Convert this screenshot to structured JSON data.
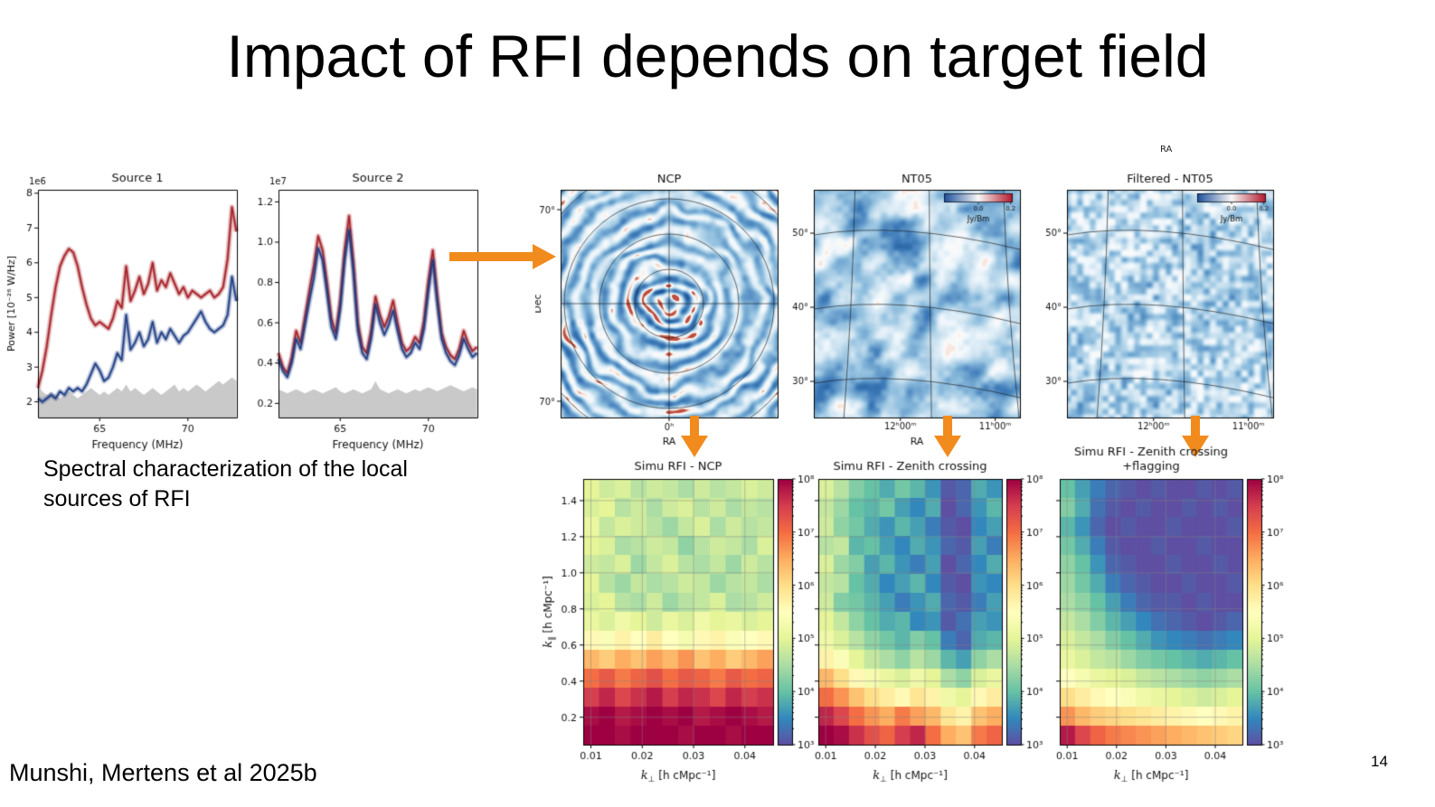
{
  "slide": {
    "title": "Impact of RFI depends on target field",
    "caption": "Spectral characterization of the local sources of RFI",
    "credit": "Munshi, Mertens et al 2025b",
    "page_number": "14",
    "arrow_color": "#F28B1D",
    "background": "#ffffff"
  },
  "spectra": {
    "xlabel": "Frequency (MHz)",
    "ylabel": "Power [10⁻²⁶ W/Hz]",
    "colors": {
      "red": "#A51C23",
      "blue": "#1C3B82",
      "floor": "#C9C9C9"
    },
    "x": [
      61.5,
      61.75,
      62,
      62.25,
      62.5,
      62.75,
      63,
      63.25,
      63.5,
      63.75,
      64,
      64.25,
      64.5,
      64.75,
      65,
      65.25,
      65.5,
      65.75,
      66,
      66.25,
      66.5,
      66.75,
      67,
      67.25,
      67.5,
      67.75,
      68,
      68.25,
      68.5,
      68.75,
      69,
      69.25,
      69.5,
      69.75,
      70,
      70.25,
      70.5,
      70.75,
      71,
      71.25,
      71.5,
      71.75,
      72,
      72.25,
      72.5,
      72.75
    ],
    "charts": [
      {
        "title": "Source 1",
        "scale_label": "1e6",
        "xlim": [
          61.5,
          72.78
        ],
        "ylim": [
          1.55,
          8.1
        ],
        "xticks": [
          "65",
          "70"
        ],
        "yticks": [
          "2",
          "3",
          "4",
          "5",
          "6",
          "7",
          "8"
        ],
        "red": [
          2.4,
          2.9,
          3.6,
          4.5,
          5.3,
          5.9,
          6.2,
          6.4,
          6.3,
          5.9,
          5.3,
          4.8,
          4.4,
          4.2,
          4.3,
          4.2,
          4.1,
          4.4,
          4.9,
          4.7,
          5.9,
          4.9,
          5.2,
          5.6,
          5.1,
          5.4,
          6.0,
          5.2,
          5.5,
          5.3,
          5.7,
          5.4,
          5.1,
          5.3,
          5.0,
          5.2,
          5.1,
          5.0,
          5.1,
          5.2,
          5.0,
          5.1,
          5.3,
          6.1,
          7.6,
          6.9
        ],
        "blue": [
          2.1,
          2.0,
          2.1,
          2.2,
          2.1,
          2.3,
          2.2,
          2.4,
          2.3,
          2.4,
          2.3,
          2.5,
          2.8,
          3.1,
          2.9,
          2.6,
          2.7,
          3.0,
          3.4,
          3.2,
          4.5,
          3.5,
          3.7,
          4.0,
          3.6,
          3.8,
          4.3,
          3.7,
          4.0,
          3.8,
          4.1,
          3.9,
          3.7,
          3.9,
          4.0,
          4.2,
          4.4,
          4.6,
          4.3,
          4.1,
          4.0,
          4.1,
          4.2,
          4.5,
          5.6,
          4.9
        ],
        "floor": [
          2.5,
          2.3,
          2.2,
          2.3,
          2.2,
          2.1,
          2.2,
          2.3,
          2.2,
          2.1,
          2.2,
          2.3,
          2.4,
          2.3,
          2.2,
          2.3,
          2.2,
          2.3,
          2.4,
          2.3,
          2.5,
          2.3,
          2.4,
          2.3,
          2.2,
          2.3,
          2.4,
          2.3,
          2.2,
          2.3,
          2.4,
          2.5,
          2.3,
          2.4,
          2.3,
          2.4,
          2.5,
          2.4,
          2.3,
          2.4,
          2.5,
          2.6,
          2.5,
          2.6,
          2.7,
          2.6
        ]
      },
      {
        "title": "Source 2",
        "scale_label": "1e7",
        "xlim": [
          61.5,
          72.78
        ],
        "ylim": [
          0.13,
          1.26
        ],
        "xticks": [
          "65",
          "70"
        ],
        "yticks": [
          "0.2",
          "0.4",
          "0.6",
          "0.8",
          "1.0",
          "1.2"
        ],
        "red": [
          0.45,
          0.38,
          0.35,
          0.43,
          0.56,
          0.5,
          0.63,
          0.76,
          0.88,
          1.03,
          0.96,
          0.8,
          0.62,
          0.55,
          0.71,
          0.96,
          1.13,
          0.9,
          0.6,
          0.48,
          0.45,
          0.56,
          0.73,
          0.64,
          0.58,
          0.63,
          0.71,
          0.6,
          0.5,
          0.46,
          0.48,
          0.53,
          0.5,
          0.61,
          0.81,
          0.96,
          0.74,
          0.55,
          0.48,
          0.44,
          0.42,
          0.47,
          0.56,
          0.5,
          0.46,
          0.48
        ],
        "blue": [
          0.42,
          0.36,
          0.33,
          0.4,
          0.52,
          0.47,
          0.59,
          0.71,
          0.82,
          0.97,
          0.91,
          0.75,
          0.58,
          0.52,
          0.67,
          0.91,
          1.06,
          0.85,
          0.56,
          0.45,
          0.42,
          0.52,
          0.69,
          0.6,
          0.54,
          0.59,
          0.66,
          0.56,
          0.47,
          0.43,
          0.45,
          0.5,
          0.47,
          0.57,
          0.76,
          0.91,
          0.7,
          0.52,
          0.45,
          0.41,
          0.39,
          0.44,
          0.52,
          0.47,
          0.43,
          0.45
        ],
        "floor": [
          0.27,
          0.26,
          0.25,
          0.26,
          0.27,
          0.26,
          0.25,
          0.26,
          0.27,
          0.26,
          0.25,
          0.26,
          0.27,
          0.28,
          0.26,
          0.25,
          0.26,
          0.27,
          0.26,
          0.25,
          0.26,
          0.27,
          0.31,
          0.27,
          0.26,
          0.25,
          0.26,
          0.27,
          0.26,
          0.25,
          0.26,
          0.27,
          0.26,
          0.27,
          0.28,
          0.27,
          0.26,
          0.27,
          0.28,
          0.29,
          0.28,
          0.27,
          0.26,
          0.27,
          0.28,
          0.27
        ]
      }
    ]
  },
  "skymaps": {
    "cropped_label": "RA",
    "maps": [
      {
        "title": "NCP",
        "pattern": "ripples",
        "ylabel": "Dec",
        "xlabel": "RA",
        "corner_ticks": [
          "70°",
          "70°"
        ],
        "bottom_tick": "0ʰ"
      },
      {
        "title": "NT05",
        "pattern": "blobs",
        "xlabel": "RA",
        "yticks": [
          "50°",
          "40°",
          "30°"
        ],
        "xticks": [
          "12ʰ00ᵐ",
          "11ʰ00ᵐ"
        ],
        "colorbar": {
          "ticks": [
            "0.0",
            "0.2"
          ],
          "label": "Jy/Bm"
        }
      },
      {
        "title": "Filtered - NT05",
        "pattern": "fine",
        "yticks": [
          "50°",
          "40°",
          "30°"
        ],
        "xticks": [
          "12ʰ00ᵐ",
          "11ʰ00ᵐ"
        ],
        "colorbar": {
          "ticks": [
            "0.0",
            "0.2"
          ],
          "label": "Jy/Bm"
        }
      }
    ]
  },
  "power_spectra": {
    "xlabel": "k⊥ [h cMpc⁻¹]",
    "ylabel": "k∥ [h cMpc⁻¹]",
    "xticks": [
      "0.01",
      "0.02",
      "0.03",
      "0.04"
    ],
    "yticks": [
      "0.2",
      "0.4",
      "0.6",
      "0.8",
      "1.0",
      "1.2",
      "1.4"
    ],
    "xlim": [
      0.0085,
      0.0455
    ],
    "ylim": [
      0.048,
      1.52
    ],
    "colorbar_ticks": [
      "10⁸",
      "10⁷",
      "10⁶",
      "10⁵",
      "10⁴",
      "10³"
    ],
    "colormap": "Spectral_r",
    "value_scale": "log10",
    "charts": [
      {
        "title_lines": [
          "Simu RFI - NCP"
        ],
        "grid": [
          [
            5.0,
            4.8,
            4.9,
            4.6,
            4.8,
            4.7,
            4.5,
            4.8,
            4.6,
            4.7,
            4.9,
            4.8
          ],
          [
            4.9,
            5.0,
            4.6,
            4.8,
            4.5,
            4.8,
            4.9,
            4.6,
            4.8,
            4.5,
            4.7,
            4.6
          ],
          [
            5.1,
            4.7,
            4.9,
            4.8,
            4.6,
            4.4,
            4.7,
            4.9,
            4.5,
            4.8,
            4.6,
            4.7
          ],
          [
            5.0,
            4.9,
            4.5,
            4.6,
            4.8,
            4.7,
            4.3,
            4.6,
            4.8,
            4.7,
            4.5,
            4.9
          ],
          [
            4.8,
            4.7,
            4.9,
            4.4,
            4.7,
            4.9,
            4.6,
            4.5,
            4.7,
            4.4,
            4.8,
            4.6
          ],
          [
            5.0,
            4.6,
            4.4,
            4.7,
            4.5,
            4.6,
            4.8,
            4.7,
            4.4,
            4.6,
            4.7,
            4.5
          ],
          [
            4.9,
            5.0,
            4.6,
            4.5,
            4.8,
            4.4,
            4.6,
            4.7,
            4.9,
            4.5,
            4.6,
            4.8
          ],
          [
            5.1,
            4.9,
            5.2,
            5.0,
            4.8,
            5.1,
            4.9,
            5.2,
            5.0,
            5.1,
            4.9,
            5.0
          ],
          [
            5.6,
            5.4,
            5.7,
            5.5,
            5.8,
            5.5,
            5.3,
            5.6,
            5.7,
            5.4,
            5.5,
            5.6
          ],
          [
            6.4,
            6.2,
            6.5,
            6.3,
            6.6,
            6.4,
            6.7,
            6.3,
            6.5,
            6.2,
            6.4,
            6.6
          ],
          [
            7.0,
            7.2,
            6.9,
            7.1,
            7.3,
            7.0,
            7.2,
            7.1,
            6.9,
            7.2,
            7.0,
            7.1
          ],
          [
            7.5,
            7.7,
            7.4,
            7.6,
            7.8,
            7.5,
            7.7,
            7.6,
            7.4,
            7.7,
            7.5,
            7.6
          ],
          [
            7.9,
            8.0,
            7.8,
            7.9,
            8.0,
            7.9,
            8.0,
            7.8,
            7.9,
            8.0,
            7.9,
            7.8
          ],
          [
            8.0,
            8.0,
            7.9,
            8.0,
            8.0,
            8.0,
            7.9,
            8.0,
            8.0,
            7.9,
            8.0,
            8.0
          ]
        ]
      },
      {
        "title_lines": [
          "Simu RFI - Zenith crossing"
        ],
        "grid": [
          [
            4.9,
            4.6,
            4.2,
            4.0,
            3.8,
            4.1,
            3.9,
            3.6,
            3.1,
            3.2,
            3.8,
            3.6
          ],
          [
            4.7,
            4.4,
            4.0,
            3.9,
            4.1,
            3.7,
            3.5,
            3.8,
            3.0,
            3.2,
            3.6,
            3.9
          ],
          [
            4.8,
            4.3,
            4.1,
            3.8,
            3.6,
            3.9,
            3.7,
            3.4,
            3.1,
            3.0,
            3.5,
            3.7
          ],
          [
            4.6,
            4.7,
            3.9,
            4.0,
            3.7,
            3.5,
            3.8,
            3.6,
            3.2,
            3.1,
            3.7,
            3.4
          ],
          [
            4.9,
            4.4,
            4.2,
            3.7,
            3.9,
            3.6,
            3.4,
            3.7,
            3.0,
            3.2,
            3.5,
            3.8
          ],
          [
            4.7,
            4.6,
            4.0,
            3.8,
            3.5,
            3.7,
            3.9,
            3.5,
            3.1,
            3.0,
            3.6,
            3.5
          ],
          [
            4.8,
            4.2,
            4.1,
            3.9,
            3.7,
            3.4,
            3.6,
            3.8,
            3.2,
            3.1,
            3.4,
            3.7
          ],
          [
            5.0,
            4.7,
            4.3,
            4.0,
            3.8,
            3.9,
            3.5,
            3.6,
            3.1,
            3.3,
            3.7,
            3.6
          ],
          [
            5.2,
            4.9,
            4.6,
            4.3,
            4.1,
            3.9,
            4.2,
            4.0,
            3.4,
            3.2,
            3.8,
            3.9
          ],
          [
            5.7,
            5.4,
            5.0,
            4.7,
            4.5,
            4.3,
            4.6,
            4.4,
            3.9,
            3.7,
            4.3,
            4.5
          ],
          [
            6.4,
            6.0,
            5.6,
            5.3,
            5.1,
            4.9,
            5.2,
            5.0,
            4.5,
            4.3,
            4.9,
            5.1
          ],
          [
            7.0,
            6.7,
            6.3,
            6.0,
            5.8,
            5.6,
            5.9,
            5.7,
            5.2,
            5.0,
            5.6,
            5.8
          ],
          [
            7.7,
            7.4,
            7.0,
            6.7,
            6.5,
            6.9,
            6.6,
            6.4,
            5.9,
            5.7,
            6.3,
            6.5
          ],
          [
            8.0,
            7.9,
            7.6,
            7.3,
            7.1,
            7.5,
            7.7,
            7.0,
            6.5,
            6.3,
            6.9,
            7.1
          ]
        ]
      },
      {
        "title_lines": [
          "Simu RFI - Zenith crossing",
          "+flagging"
        ],
        "grid": [
          [
            4.0,
            3.7,
            3.4,
            3.2,
            3.1,
            3.0,
            3.1,
            3.0,
            3.0,
            3.1,
            3.0,
            3.1
          ],
          [
            4.2,
            3.8,
            3.3,
            3.1,
            3.0,
            3.1,
            3.0,
            3.0,
            3.1,
            3.0,
            3.1,
            3.0
          ],
          [
            3.9,
            3.6,
            3.2,
            3.0,
            3.1,
            3.0,
            3.0,
            3.1,
            3.0,
            3.0,
            3.0,
            3.1
          ],
          [
            4.1,
            3.8,
            3.4,
            3.1,
            3.0,
            3.0,
            3.1,
            3.0,
            3.0,
            3.1,
            3.0,
            3.0
          ],
          [
            4.3,
            4.0,
            3.6,
            3.2,
            3.1,
            3.0,
            3.0,
            3.1,
            3.0,
            3.0,
            3.1,
            3.0
          ],
          [
            4.4,
            4.1,
            3.8,
            3.4,
            3.2,
            3.1,
            3.0,
            3.0,
            3.1,
            3.0,
            3.0,
            3.1
          ],
          [
            4.5,
            4.3,
            4.0,
            3.7,
            3.4,
            3.2,
            3.1,
            3.1,
            3.0,
            3.1,
            3.0,
            3.0
          ],
          [
            4.7,
            4.5,
            4.2,
            3.9,
            3.7,
            3.5,
            3.3,
            3.2,
            3.1,
            3.0,
            3.1,
            3.2
          ],
          [
            4.9,
            4.7,
            4.5,
            4.2,
            4.0,
            3.8,
            3.6,
            3.5,
            3.4,
            3.3,
            3.4,
            3.5
          ],
          [
            5.1,
            4.9,
            4.7,
            4.6,
            4.4,
            4.2,
            4.1,
            4.0,
            3.9,
            3.8,
            3.9,
            4.0
          ],
          [
            5.5,
            5.3,
            5.1,
            5.0,
            4.9,
            4.7,
            4.6,
            4.5,
            4.4,
            4.3,
            4.4,
            4.5
          ],
          [
            6.0,
            5.8,
            5.6,
            5.5,
            5.4,
            5.2,
            5.1,
            5.0,
            4.9,
            4.8,
            4.9,
            5.0
          ],
          [
            6.7,
            6.4,
            6.2,
            6.1,
            6.0,
            5.9,
            5.8,
            5.7,
            5.6,
            5.5,
            5.6,
            5.7
          ],
          [
            7.8,
            7.4,
            7.1,
            6.9,
            6.8,
            6.7,
            6.6,
            6.5,
            6.4,
            6.3,
            6.2,
            6.1
          ]
        ]
      }
    ]
  }
}
